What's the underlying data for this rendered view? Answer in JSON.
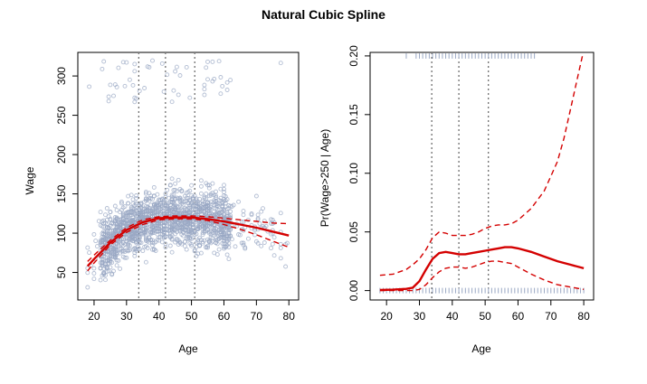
{
  "title": "Natural Cubic Spline",
  "chart_data": [
    {
      "type": "scatter",
      "xlabel": "Age",
      "ylabel": "Wage",
      "xlim": [
        15,
        83
      ],
      "ylim": [
        15,
        330
      ],
      "xticks": [
        20,
        30,
        40,
        50,
        60,
        70,
        80
      ],
      "yticks": [
        50,
        100,
        150,
        200,
        250,
        300
      ],
      "knots": [
        33.75,
        42,
        51
      ],
      "grid": false,
      "colors": {
        "points": "#9aa8c4",
        "fit": "#d40000"
      },
      "fit": {
        "x": [
          18,
          20,
          25,
          30,
          35,
          40,
          45,
          50,
          55,
          60,
          65,
          70,
          75,
          80
        ],
        "y": [
          58,
          67,
          88,
          104,
          114,
          119,
          120,
          120,
          118,
          115,
          111,
          107,
          102,
          97
        ]
      },
      "upper": {
        "x": [
          18,
          20,
          25,
          30,
          35,
          40,
          45,
          50,
          55,
          60,
          65,
          70,
          75,
          80
        ],
        "y": [
          64,
          72,
          91,
          107,
          117,
          121,
          122,
          122,
          121,
          119,
          117,
          115,
          113,
          112
        ]
      },
      "lower": {
        "x": [
          18,
          20,
          25,
          30,
          35,
          40,
          45,
          50,
          55,
          60,
          65,
          70,
          75,
          80
        ],
        "y": [
          52,
          62,
          85,
          101,
          111,
          117,
          118,
          118,
          116,
          111,
          105,
          98,
          90,
          82
        ]
      }
    },
    {
      "type": "line",
      "xlabel": "Age",
      "ylabel": "Pr(Wage>250 | Age)",
      "xlim": [
        15,
        83
      ],
      "ylim": [
        -0.008,
        0.203
      ],
      "xticks": [
        20,
        30,
        40,
        50,
        60,
        70,
        80
      ],
      "yticks": [
        0.0,
        0.05,
        0.1,
        0.15,
        0.2
      ],
      "ytick_labels": [
        "0.00",
        "0.05",
        "0.10",
        "0.15",
        "0.20"
      ],
      "knots": [
        33.75,
        42,
        51
      ],
      "grid": false,
      "colors": {
        "rug": "#9aa8c4",
        "fit": "#d40000"
      },
      "fit": {
        "x": [
          18,
          22,
          26,
          28,
          30,
          32,
          34,
          36,
          38,
          40,
          42,
          44,
          46,
          48,
          50,
          52,
          54,
          56,
          58,
          60,
          64,
          68,
          72,
          76,
          80
        ],
        "y": [
          0.0005,
          0.0008,
          0.0015,
          0.0025,
          0.008,
          0.018,
          0.027,
          0.032,
          0.033,
          0.032,
          0.031,
          0.031,
          0.032,
          0.033,
          0.034,
          0.035,
          0.036,
          0.037,
          0.037,
          0.036,
          0.033,
          0.029,
          0.025,
          0.022,
          0.019
        ]
      },
      "upper": {
        "x": [
          18,
          22,
          26,
          28,
          30,
          32,
          34,
          36,
          38,
          40,
          42,
          44,
          46,
          48,
          50,
          52,
          54,
          56,
          58,
          60,
          64,
          68,
          72,
          74,
          76,
          78,
          80
        ],
        "y": [
          0.013,
          0.014,
          0.018,
          0.022,
          0.027,
          0.035,
          0.045,
          0.05,
          0.049,
          0.047,
          0.047,
          0.047,
          0.048,
          0.05,
          0.053,
          0.055,
          0.056,
          0.056,
          0.057,
          0.06,
          0.07,
          0.085,
          0.11,
          0.13,
          0.155,
          0.18,
          0.205
        ]
      },
      "lower": {
        "x": [
          18,
          22,
          26,
          28,
          30,
          32,
          34,
          36,
          38,
          40,
          42,
          44,
          46,
          48,
          50,
          52,
          54,
          56,
          58,
          60,
          64,
          68,
          72,
          76,
          80
        ],
        "y": [
          0.0,
          0.0,
          0.0,
          0.0,
          0.001,
          0.005,
          0.011,
          0.016,
          0.019,
          0.02,
          0.02,
          0.019,
          0.02,
          0.022,
          0.024,
          0.025,
          0.025,
          0.024,
          0.023,
          0.02,
          0.014,
          0.009,
          0.005,
          0.003,
          0.001
        ]
      },
      "rug_top_ages": [
        26,
        29,
        30,
        31,
        32,
        33,
        34,
        35,
        36,
        37,
        38,
        39,
        40,
        41,
        42,
        43,
        44,
        45,
        46,
        47,
        48,
        49,
        50,
        51,
        52,
        53,
        54,
        55,
        56,
        57,
        58,
        59,
        60,
        61,
        62,
        63,
        64,
        65
      ],
      "rug_bottom_ages": [
        18,
        19,
        20,
        21,
        22,
        23,
        24,
        25,
        26,
        27,
        28,
        29,
        30,
        31,
        32,
        33,
        34,
        35,
        36,
        37,
        38,
        39,
        40,
        41,
        42,
        43,
        44,
        45,
        46,
        47,
        48,
        49,
        50,
        51,
        52,
        53,
        54,
        55,
        56,
        57,
        58,
        59,
        60,
        61,
        62,
        63,
        64,
        65,
        66,
        67,
        68,
        69,
        70,
        71,
        72,
        73,
        74,
        75,
        76,
        77,
        78,
        79,
        80
      ]
    }
  ]
}
